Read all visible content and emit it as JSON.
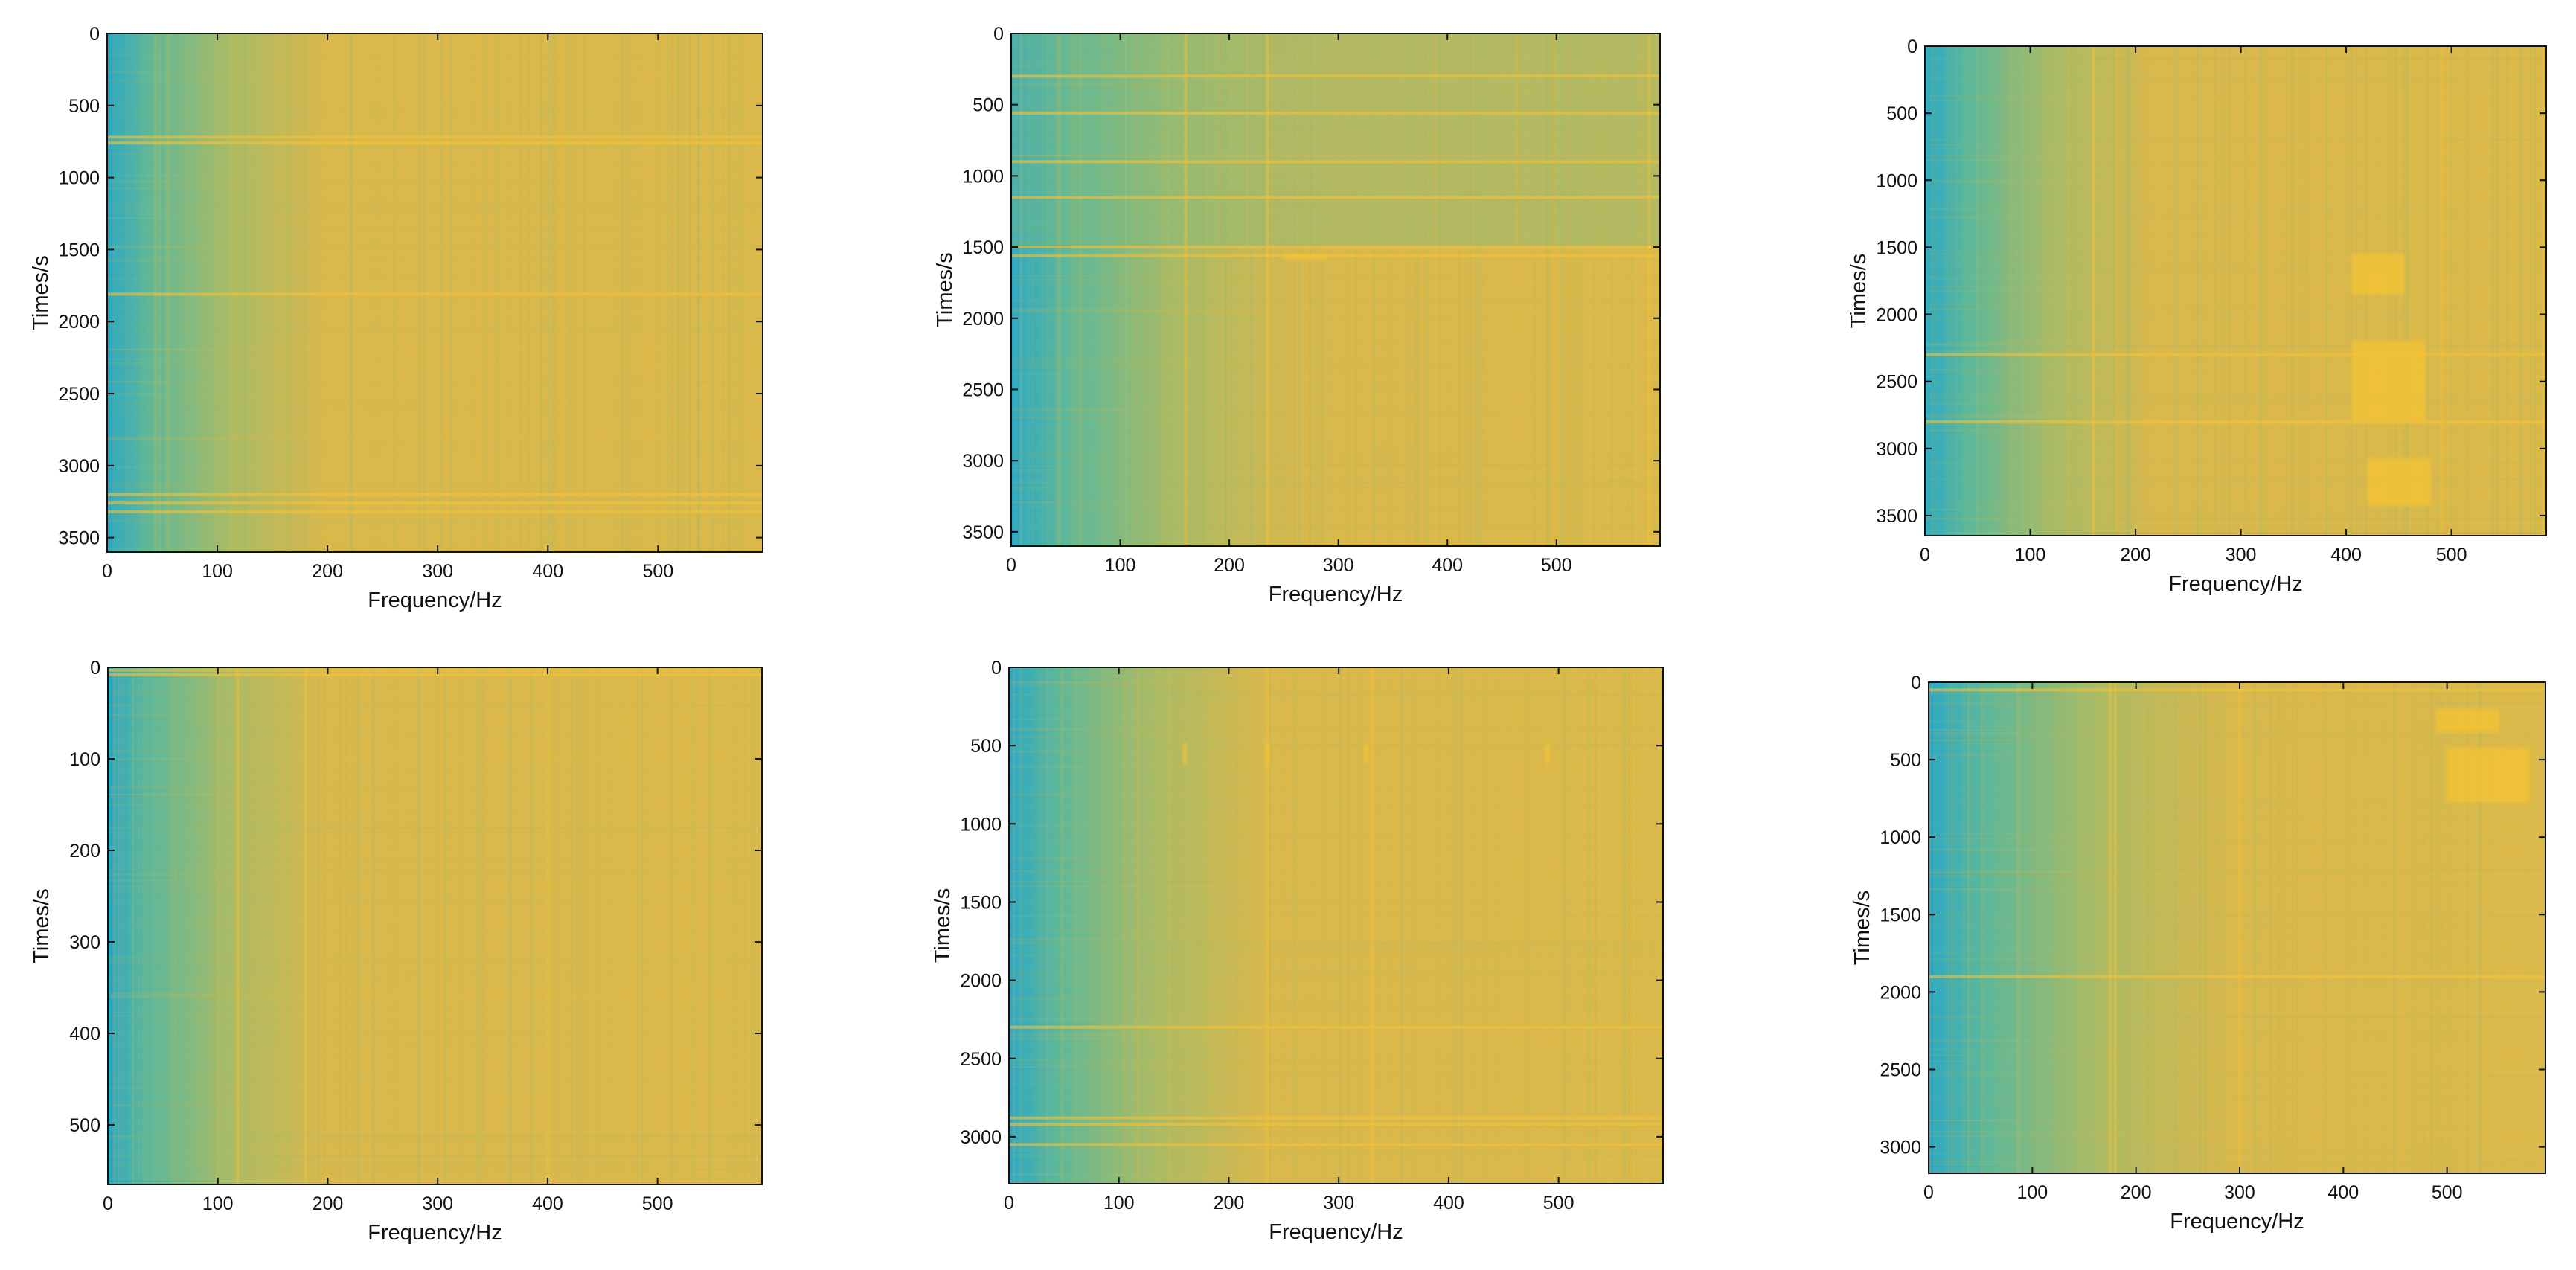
{
  "chart_data": [
    {
      "type": "heatmap",
      "name": "spectrogram-1",
      "xlabel": "Frequency/Hz",
      "ylabel": "Times/s",
      "xlim": [
        0,
        595
      ],
      "ylim": [
        0,
        3600
      ],
      "y_inverted": true,
      "xticks": [
        0,
        100,
        200,
        300,
        400,
        500
      ],
      "yticks": [
        0,
        500,
        1000,
        1500,
        2000,
        2500,
        3000,
        3500
      ],
      "colormap": [
        "#2aa8c6",
        "#5db89a",
        "#9ebc6c",
        "#d6b84e",
        "#f0bc3c"
      ],
      "low_freq_edge_hz": 110,
      "bright_rows": [
        720,
        760,
        1810,
        3200,
        3260,
        3320
      ],
      "bright_cols": [],
      "blobs": []
    },
    {
      "type": "heatmap",
      "name": "spectrogram-2",
      "xlabel": "Frequency/Hz",
      "ylabel": "Times/s",
      "xlim": [
        0,
        595
      ],
      "ylim": [
        0,
        3600
      ],
      "y_inverted": true,
      "xticks": [
        0,
        100,
        200,
        300,
        400,
        500
      ],
      "yticks": [
        0,
        500,
        1000,
        1500,
        2000,
        2500,
        3000,
        3500
      ],
      "colormap": [
        "#2aa8c6",
        "#5db89a",
        "#9ebc6c",
        "#d6b84e",
        "#f0bc3c"
      ],
      "low_freq_edge_hz": 150,
      "cool_band": [
        0,
        1500
      ],
      "bright_rows": [
        300,
        560,
        900,
        1150,
        1500,
        1560
      ],
      "bright_cols": [
        160,
        235,
        585
      ],
      "blobs": [
        [
          270,
          1570,
          40,
          40
        ]
      ]
    },
    {
      "type": "heatmap",
      "name": "spectrogram-3",
      "xlabel": "Frequency/Hz",
      "ylabel": "Times/s",
      "xlim": [
        0,
        590
      ],
      "ylim": [
        0,
        3650
      ],
      "y_inverted": true,
      "xticks": [
        0,
        100,
        200,
        300,
        400,
        500
      ],
      "yticks": [
        0,
        500,
        1000,
        1500,
        2000,
        2500,
        3000,
        3500
      ],
      "colormap": [
        "#2aa8c6",
        "#5db89a",
        "#9ebc6c",
        "#d6b84e",
        "#f0bc3c"
      ],
      "low_freq_edge_hz": 120,
      "bright_rows": [
        2300,
        2800
      ],
      "bright_cols": [
        160,
        490
      ],
      "blobs": [
        [
          440,
          2500,
          70,
          600
        ],
        [
          450,
          3250,
          60,
          350
        ],
        [
          430,
          1700,
          50,
          300
        ]
      ]
    },
    {
      "type": "heatmap",
      "name": "spectrogram-4",
      "xlabel": "Frequency/Hz",
      "ylabel": "Times/s",
      "xlim": [
        0,
        595
      ],
      "ylim": [
        0,
        565
      ],
      "y_inverted": true,
      "xticks": [
        0,
        100,
        200,
        300,
        400,
        500
      ],
      "yticks": [
        0,
        100,
        200,
        300,
        400,
        500
      ],
      "colormap": [
        "#2aa8c6",
        "#5db89a",
        "#9ebc6c",
        "#d6b84e",
        "#f0bc3c"
      ],
      "low_freq_edge_hz": 110,
      "bright_rows": [
        3,
        8
      ],
      "bright_cols": [
        118,
        180,
        400
      ],
      "blobs": []
    },
    {
      "type": "heatmap",
      "name": "spectrogram-5",
      "xlabel": "Frequency/Hz",
      "ylabel": "Times/s",
      "xlim": [
        0,
        595
      ],
      "ylim": [
        0,
        3300
      ],
      "y_inverted": true,
      "xticks": [
        0,
        100,
        200,
        300,
        400,
        500
      ],
      "yticks": [
        0,
        500,
        1000,
        1500,
        2000,
        2500,
        3000
      ],
      "colormap": [
        "#2aa8c6",
        "#5db89a",
        "#9ebc6c",
        "#d6b84e",
        "#f0bc3c"
      ],
      "low_freq_edge_hz": 130,
      "bright_rows": [
        2300,
        2880,
        2920,
        3050
      ],
      "bright_cols": [
        235,
        330
      ],
      "blobs": [
        [
          160,
          550,
          4,
          130
        ],
        [
          235,
          550,
          4,
          130
        ],
        [
          325,
          550,
          4,
          120
        ],
        [
          490,
          550,
          4,
          130
        ]
      ]
    },
    {
      "type": "heatmap",
      "name": "spectrogram-6",
      "xlabel": "Frequency/Hz",
      "ylabel": "Times/s",
      "xlim": [
        0,
        595
      ],
      "ylim": [
        0,
        3170
      ],
      "y_inverted": true,
      "xticks": [
        0,
        100,
        200,
        300,
        400,
        500
      ],
      "yticks": [
        0,
        500,
        1000,
        1500,
        2000,
        2500,
        3000
      ],
      "colormap": [
        "#2aa8c6",
        "#5db89a",
        "#9ebc6c",
        "#d6b84e",
        "#f0bc3c"
      ],
      "low_freq_edge_hz": 160,
      "bright_rows": [
        50,
        1900
      ],
      "bright_cols": [
        175,
        180,
        300
      ],
      "blobs": [
        [
          540,
          600,
          80,
          350
        ],
        [
          520,
          250,
          60,
          150
        ]
      ]
    }
  ]
}
